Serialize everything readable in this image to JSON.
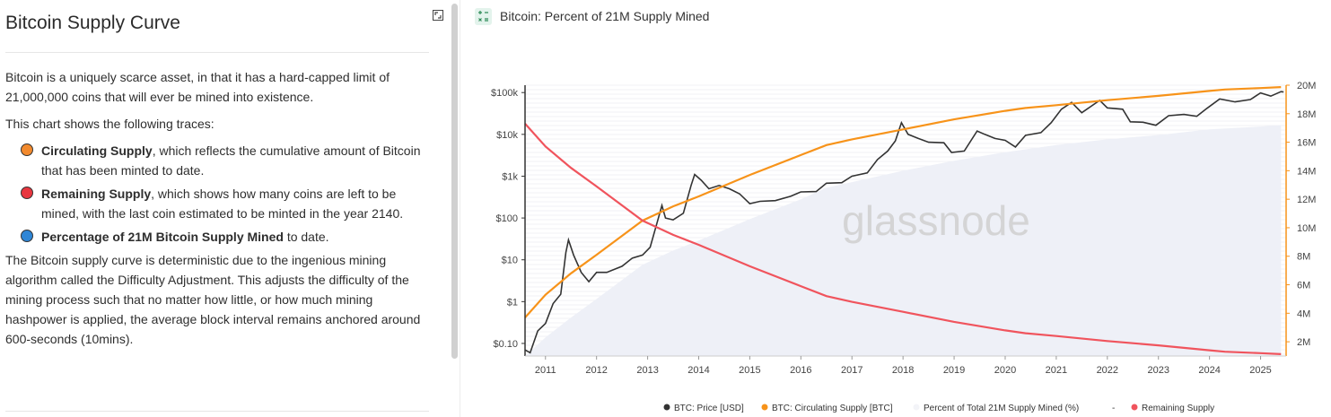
{
  "left": {
    "title": "Bitcoin Supply Curve",
    "p1": "Bitcoin is a uniquely scarce asset, in that it has a hard-capped limit of 21,000,000 coins that will ever be mined into existence.",
    "p2": "This chart shows the following traces:",
    "bullets": [
      {
        "bold": "Circulating Supply",
        "rest": ", which reflects the cumulative amount of Bitcoin that has been minted to date.",
        "color": "#f28a2e"
      },
      {
        "bold": "Remaining Supply",
        "rest": ", which shows how many coins are left to be mined, with the last coin estimated to be minted in the year 2140.",
        "color": "#e8363f"
      },
      {
        "bold": "Percentage of 21M Bitcoin Supply Mined",
        "rest": " to date.",
        "color": "#2f86d6"
      }
    ],
    "p3": "The Bitcoin supply curve is deterministic due to the ingenious mining algorithm called the Difficulty Adjustment. This adjusts the difficulty of the mining process such that no matter how little, or how much mining hashpower is applied, the average block interval remains anchored around 600-seconds (10mins)."
  },
  "chart_header": {
    "title": "Bitcoin: Percent of 21M Supply Mined",
    "icon": "chart-settings-icon"
  },
  "watermark": "glassnode",
  "chart_data": {
    "type": "line",
    "x_ticks": [
      "2011",
      "2012",
      "2013",
      "2014",
      "2015",
      "2016",
      "2017",
      "2018",
      "2019",
      "2020",
      "2021",
      "2022",
      "2023",
      "2024",
      "2025"
    ],
    "xlim": [
      2010.6,
      2025.5
    ],
    "y_left": {
      "scale": "log",
      "ticks": [
        "$0.10",
        "$1",
        "$10",
        "$100",
        "$1k",
        "$10k",
        "$100k"
      ],
      "values": [
        0.1,
        1,
        10,
        100,
        1000,
        10000,
        100000
      ],
      "lim": [
        0.05,
        150000
      ]
    },
    "y_right": {
      "ticks": [
        "2M",
        "4M",
        "6M",
        "8M",
        "10M",
        "12M",
        "14M",
        "16M",
        "18M",
        "20M"
      ],
      "values": [
        2,
        4,
        6,
        8,
        10,
        12,
        14,
        16,
        18,
        20
      ],
      "unit": "M",
      "lim": [
        1,
        20
      ]
    },
    "series": [
      {
        "name": "BTC: Price [USD]",
        "color": "#333333",
        "axis": "left",
        "points": [
          [
            2010.6,
            0.07
          ],
          [
            2010.7,
            0.06
          ],
          [
            2010.85,
            0.2
          ],
          [
            2011.0,
            0.3
          ],
          [
            2011.15,
            0.9
          ],
          [
            2011.3,
            1.5
          ],
          [
            2011.4,
            15
          ],
          [
            2011.45,
            30
          ],
          [
            2011.55,
            13
          ],
          [
            2011.7,
            5
          ],
          [
            2011.85,
            3
          ],
          [
            2012.0,
            5
          ],
          [
            2012.2,
            5
          ],
          [
            2012.5,
            7
          ],
          [
            2012.7,
            11
          ],
          [
            2012.9,
            13
          ],
          [
            2013.05,
            20
          ],
          [
            2013.2,
            90
          ],
          [
            2013.28,
            200
          ],
          [
            2013.35,
            100
          ],
          [
            2013.5,
            90
          ],
          [
            2013.7,
            130
          ],
          [
            2013.85,
            600
          ],
          [
            2013.92,
            1100
          ],
          [
            2014.05,
            800
          ],
          [
            2014.2,
            500
          ],
          [
            2014.4,
            600
          ],
          [
            2014.6,
            500
          ],
          [
            2014.8,
            380
          ],
          [
            2015.0,
            220
          ],
          [
            2015.2,
            250
          ],
          [
            2015.5,
            260
          ],
          [
            2015.8,
            330
          ],
          [
            2016.0,
            420
          ],
          [
            2016.3,
            430
          ],
          [
            2016.5,
            680
          ],
          [
            2016.8,
            700
          ],
          [
            2017.0,
            1000
          ],
          [
            2017.3,
            1200
          ],
          [
            2017.5,
            2500
          ],
          [
            2017.7,
            4000
          ],
          [
            2017.85,
            7000
          ],
          [
            2017.97,
            19000
          ],
          [
            2018.1,
            10000
          ],
          [
            2018.3,
            8000
          ],
          [
            2018.5,
            6500
          ],
          [
            2018.8,
            6300
          ],
          [
            2018.95,
            3700
          ],
          [
            2019.2,
            4000
          ],
          [
            2019.45,
            12000
          ],
          [
            2019.6,
            10000
          ],
          [
            2019.8,
            8000
          ],
          [
            2020.0,
            7200
          ],
          [
            2020.2,
            5000
          ],
          [
            2020.4,
            9500
          ],
          [
            2020.7,
            11000
          ],
          [
            2020.9,
            19000
          ],
          [
            2021.1,
            40000
          ],
          [
            2021.3,
            58000
          ],
          [
            2021.5,
            33000
          ],
          [
            2021.85,
            65000
          ],
          [
            2022.0,
            43000
          ],
          [
            2022.3,
            40000
          ],
          [
            2022.45,
            20000
          ],
          [
            2022.7,
            19500
          ],
          [
            2022.95,
            16500
          ],
          [
            2023.2,
            28000
          ],
          [
            2023.5,
            30000
          ],
          [
            2023.75,
            27000
          ],
          [
            2023.95,
            42000
          ],
          [
            2024.2,
            70000
          ],
          [
            2024.5,
            60000
          ],
          [
            2024.8,
            68000
          ],
          [
            2025.0,
            98000
          ],
          [
            2025.2,
            82000
          ],
          [
            2025.4,
            105000
          ],
          [
            2025.45,
            103000
          ]
        ]
      },
      {
        "name": "BTC: Circulating Supply [BTC]",
        "color": "#f7931a",
        "axis": "right",
        "points": [
          [
            2010.6,
            3.7
          ],
          [
            2011.0,
            5.3
          ],
          [
            2011.5,
            6.8
          ],
          [
            2012.0,
            8.1
          ],
          [
            2012.9,
            10.5
          ],
          [
            2013.5,
            11.5
          ],
          [
            2014.0,
            12.2
          ],
          [
            2015.0,
            13.7
          ],
          [
            2016.0,
            15.1
          ],
          [
            2016.5,
            15.8
          ],
          [
            2017.0,
            16.2
          ],
          [
            2018.0,
            16.9
          ],
          [
            2019.0,
            17.6
          ],
          [
            2020.0,
            18.2
          ],
          [
            2020.4,
            18.4
          ],
          [
            2021.0,
            18.6
          ],
          [
            2022.0,
            18.95
          ],
          [
            2023.0,
            19.25
          ],
          [
            2024.0,
            19.6
          ],
          [
            2024.3,
            19.7
          ],
          [
            2025.0,
            19.8
          ],
          [
            2025.4,
            19.87
          ]
        ]
      },
      {
        "name": "Percent of Total 21M Supply Mined (%)",
        "color": "#eef0f7",
        "axis": "right",
        "style": "area",
        "points": [
          [
            2010.6,
            1.0
          ],
          [
            2011.0,
            2.3
          ],
          [
            2011.5,
            3.7
          ],
          [
            2012.0,
            5.0
          ],
          [
            2012.9,
            7.4
          ],
          [
            2013.5,
            8.4
          ],
          [
            2014.0,
            9.1
          ],
          [
            2015.0,
            10.6
          ],
          [
            2016.0,
            12.0
          ],
          [
            2016.5,
            12.8
          ],
          [
            2017.0,
            13.2
          ],
          [
            2018.0,
            14.0
          ],
          [
            2019.0,
            14.7
          ],
          [
            2020.0,
            15.3
          ],
          [
            2021.0,
            15.8
          ],
          [
            2022.0,
            16.2
          ],
          [
            2023.0,
            16.5
          ],
          [
            2024.0,
            16.9
          ],
          [
            2025.0,
            17.1
          ],
          [
            2025.4,
            17.2
          ]
        ]
      },
      {
        "name": "-",
        "color": "#ffffff",
        "axis": "right"
      },
      {
        "name": "Remaining Supply",
        "color": "#f0545d",
        "axis": "right",
        "points": [
          [
            2010.6,
            17.3
          ],
          [
            2011.0,
            15.7
          ],
          [
            2011.5,
            14.2
          ],
          [
            2012.0,
            12.9
          ],
          [
            2012.9,
            10.5
          ],
          [
            2013.5,
            9.5
          ],
          [
            2014.0,
            8.8
          ],
          [
            2015.0,
            7.3
          ],
          [
            2016.0,
            5.9
          ],
          [
            2016.5,
            5.2
          ],
          [
            2017.0,
            4.8
          ],
          [
            2018.0,
            4.1
          ],
          [
            2019.0,
            3.4
          ],
          [
            2020.0,
            2.8
          ],
          [
            2020.4,
            2.6
          ],
          [
            2021.0,
            2.4
          ],
          [
            2022.0,
            2.05
          ],
          [
            2023.0,
            1.75
          ],
          [
            2024.0,
            1.4
          ],
          [
            2024.3,
            1.3
          ],
          [
            2025.0,
            1.2
          ],
          [
            2025.4,
            1.13
          ]
        ]
      }
    ]
  }
}
